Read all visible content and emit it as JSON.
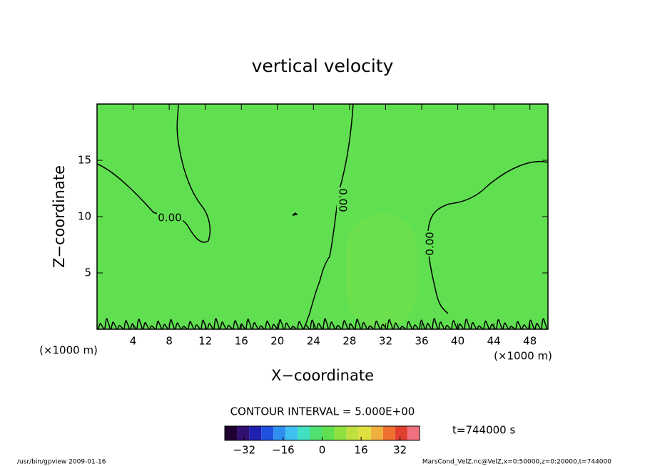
{
  "chart_data": {
    "type": "contour",
    "title": "vertical velocity",
    "xlabel": "X−coordinate",
    "ylabel": "Z−coordinate",
    "x_unit": "(×1000 m)",
    "xlim": [
      0,
      50
    ],
    "xticks": [
      4,
      8,
      12,
      16,
      20,
      24,
      28,
      32,
      36,
      40,
      44,
      48
    ],
    "ylim": [
      0,
      20
    ],
    "yticks": [
      5,
      10,
      15
    ],
    "contour_levels": [
      {
        "value": 0,
        "label": "0.00"
      }
    ],
    "contour_interval_text": "CONTOUR INTERVAL = 5.000E+00",
    "colorbar": {
      "lim": [
        -40,
        40
      ],
      "ticks": [
        {
          "value": -32,
          "label": "−32"
        },
        {
          "value": -16,
          "label": "−16"
        },
        0,
        16,
        32
      ],
      "colors": [
        "#200030",
        "#301070",
        "#2020b0",
        "#2050e0",
        "#3090f0",
        "#40c0f0",
        "#40e0c0",
        "#50e070",
        "#60e050",
        "#90e040",
        "#c0e040",
        "#e0e040",
        "#f0b040",
        "#f07030",
        "#e04030",
        "#f07080"
      ]
    },
    "time_text": "t=744000 s",
    "footer_left": "/usr/bin/gpview  2009-01-16",
    "footer_right": "MarsCond_VelZ.nc@VelZ,x=0:50000,z=0:20000,t=744000"
  }
}
